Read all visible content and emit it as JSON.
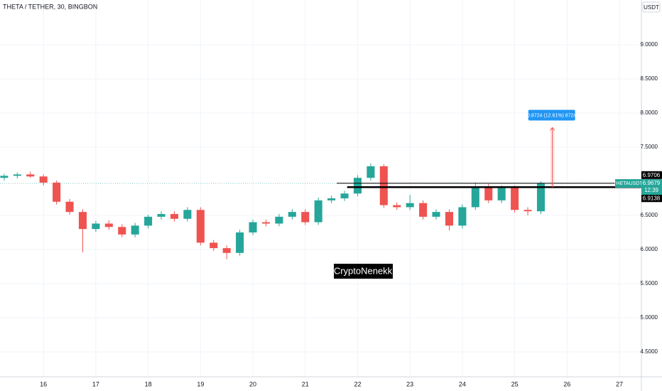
{
  "chart_data": {
    "type": "candlestick",
    "title": "THETA / TETHER, 30, BINGBON",
    "currency": "USDT",
    "x": [
      15.25,
      15.5,
      15.75,
      16,
      16.25,
      16.5,
      16.75,
      17,
      17.25,
      17.5,
      17.75,
      18,
      18.25,
      18.5,
      18.75,
      19,
      19.25,
      19.5,
      19.75,
      20,
      20.25,
      20.5,
      20.75,
      21,
      21.25,
      21.5,
      21.75,
      22,
      22.25,
      22.5,
      22.75,
      23,
      23.25,
      23.5,
      23.75,
      24,
      24.25,
      24.5,
      24.75,
      25,
      25.25,
      25.5
    ],
    "open": [
      7.05,
      7.08,
      7.1,
      7.07,
      6.98,
      6.7,
      6.55,
      6.3,
      6.38,
      6.33,
      6.22,
      6.35,
      6.48,
      6.52,
      6.45,
      6.58,
      6.1,
      6.02,
      5.95,
      6.25,
      6.4,
      6.38,
      6.48,
      6.55,
      6.4,
      6.72,
      6.75,
      6.82,
      7.05,
      7.22,
      6.65,
      6.62,
      6.68,
      6.48,
      6.55,
      6.35,
      6.62,
      6.92,
      6.72,
      6.9,
      6.58,
      6.56
    ],
    "high": [
      7.11,
      7.13,
      7.14,
      7.1,
      7.01,
      6.74,
      6.59,
      6.42,
      6.43,
      6.37,
      6.39,
      6.51,
      6.56,
      6.56,
      6.62,
      6.62,
      6.14,
      6.06,
      6.29,
      6.44,
      6.44,
      6.52,
      6.59,
      6.59,
      6.76,
      6.79,
      6.86,
      7.09,
      7.26,
      7.25,
      6.69,
      6.8,
      6.72,
      6.59,
      6.59,
      6.66,
      6.98,
      6.96,
      6.94,
      6.94,
      6.62,
      7.0
    ],
    "low": [
      7.01,
      7.04,
      7.05,
      6.94,
      6.66,
      6.51,
      5.96,
      6.26,
      6.29,
      6.18,
      6.18,
      6.31,
      6.44,
      6.41,
      6.41,
      6.06,
      5.98,
      5.86,
      5.91,
      6.21,
      6.34,
      6.34,
      6.44,
      6.36,
      6.36,
      6.68,
      6.71,
      6.78,
      7.01,
      6.61,
      6.58,
      6.58,
      6.44,
      6.44,
      6.28,
      6.31,
      6.58,
      6.68,
      6.68,
      6.54,
      6.5,
      6.52
    ],
    "close": [
      7.08,
      7.1,
      7.07,
      6.98,
      6.7,
      6.55,
      6.3,
      6.38,
      6.33,
      6.22,
      6.35,
      6.48,
      6.52,
      6.45,
      6.58,
      6.1,
      6.02,
      5.95,
      6.25,
      6.4,
      6.38,
      6.48,
      6.55,
      6.4,
      6.72,
      6.75,
      6.82,
      7.05,
      7.22,
      6.65,
      6.62,
      6.68,
      6.48,
      6.55,
      6.35,
      6.62,
      6.92,
      6.72,
      6.9,
      6.58,
      6.56,
      6.97
    ],
    "up_color": "#26a69a",
    "down_color": "#ef5350",
    "xlim": [
      15.17,
      27.42
    ],
    "xticks": [
      16,
      17,
      18,
      19,
      20,
      21,
      22,
      23,
      24,
      25,
      26,
      27
    ],
    "ylim": [
      4.135,
      9.656
    ],
    "yticks": [
      {
        "value": 4.5,
        "label": "4.5000"
      },
      {
        "value": 5,
        "label": "5.0000"
      },
      {
        "value": 5.5,
        "label": "5.5000"
      },
      {
        "value": 6,
        "label": "6.0000"
      },
      {
        "value": 6.5,
        "label": "6.5000"
      },
      {
        "value": 7.5,
        "label": "7.5000"
      },
      {
        "value": 8,
        "label": "8.0000"
      },
      {
        "value": 8.5,
        "label": "8.5000"
      },
      {
        "value": 9,
        "label": "9.0000"
      }
    ],
    "grid": true,
    "last_price": {
      "symbol": "THETAUSDT",
      "value": 6.9679,
      "countdown": "12:39"
    },
    "levels": [
      {
        "value": 6.9706,
        "from": 21.6
      },
      {
        "value": 6.9138,
        "from": 21.8
      }
    ],
    "measure": {
      "x": 25.72,
      "from": 6.9138,
      "to": 7.7862,
      "label": "0.8724 (12.61%) 8724"
    },
    "watermark": "CryptoNenekk"
  }
}
